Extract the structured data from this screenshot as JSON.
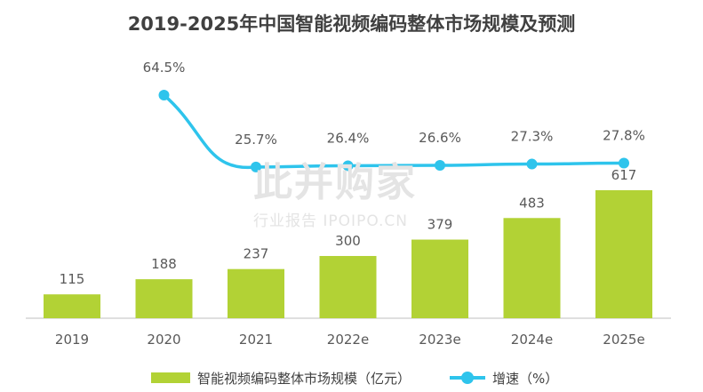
{
  "chart_data": {
    "type": "bar",
    "title": "2019-2025年中国智能视频编码整体市场规模及预测",
    "categories": [
      "2019",
      "2020",
      "2021",
      "2022e",
      "2023e",
      "2024e",
      "2025e"
    ],
    "series": [
      {
        "name": "智能视频编码整体市场规模（亿元）",
        "type": "bar",
        "values": [
          115,
          188,
          237,
          300,
          379,
          483,
          617
        ]
      },
      {
        "name": "增速（%）",
        "type": "line",
        "values": [
          null,
          64.5,
          25.7,
          26.4,
          26.6,
          27.3,
          27.8
        ],
        "labels": [
          "",
          "64.5%",
          "25.7%",
          "26.4%",
          "26.6%",
          "27.3%",
          "27.8%"
        ]
      }
    ],
    "grid": false,
    "legend_position": "bottom",
    "colors": {
      "bar": "#b2d235",
      "line": "#2ec4ec",
      "text": "#595959",
      "axis": "#bfbfbf"
    }
  },
  "watermark": {
    "main": "此并购家",
    "sub": "行业报告 IPOIPO.CN"
  }
}
